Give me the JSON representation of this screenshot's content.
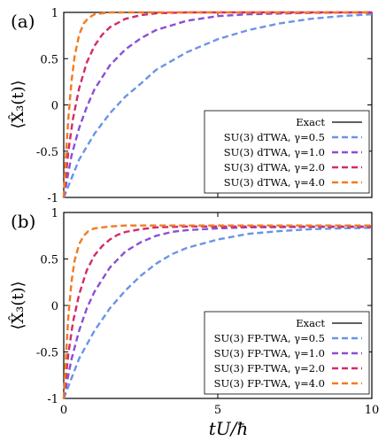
{
  "figure": {
    "xlabel": "tU/ħ",
    "ylabel": "⟨X̂₃(t)⟩"
  },
  "chart_data": [
    {
      "type": "line",
      "panel_label": "(a)",
      "xlim": [
        0,
        10
      ],
      "ylim": [
        -1,
        1
      ],
      "xticks": [
        0,
        5,
        10
      ],
      "yticks": [
        -1,
        -0.5,
        0,
        0.5,
        1
      ],
      "ytick_labels": [
        "-1",
        "-0.5",
        "0",
        "0.5",
        "1"
      ],
      "xtick_labels": [
        "",
        "",
        ""
      ],
      "grid": false,
      "legend_position": "bottom-right",
      "series": [
        {
          "name": "Exact",
          "style": "solid",
          "color": "#000000",
          "gamma": null,
          "x": [],
          "y": []
        },
        {
          "name": "SU(3) dTWA, γ=0.5",
          "style": "dashed",
          "color": "#6a94e6",
          "gamma": 0.5,
          "x": [
            0,
            0.5,
            1,
            1.5,
            2,
            2.5,
            3,
            4,
            5,
            6,
            7,
            8,
            9,
            10
          ],
          "y": [
            -1,
            -0.59,
            -0.31,
            -0.09,
            0.09,
            0.23,
            0.38,
            0.57,
            0.71,
            0.81,
            0.88,
            0.93,
            0.96,
            0.98
          ]
        },
        {
          "name": "SU(3) dTWA, γ=1.0",
          "style": "dashed",
          "color": "#8a4fd6",
          "gamma": 1.0,
          "x": [
            0,
            0.25,
            0.5,
            0.75,
            1,
            1.5,
            2,
            2.5,
            3,
            4,
            5,
            6,
            8,
            10
          ],
          "y": [
            -1,
            -0.55,
            -0.25,
            -0.02,
            0.17,
            0.43,
            0.6,
            0.72,
            0.81,
            0.91,
            0.96,
            0.98,
            0.995,
            1.0
          ]
        },
        {
          "name": "SU(3) dTWA, γ=2.0",
          "style": "dashed",
          "color": "#d42a6a",
          "gamma": 2.0,
          "x": [
            0,
            0.15,
            0.3,
            0.5,
            0.75,
            1,
            1.25,
            1.5,
            2,
            2.5,
            3,
            4,
            6,
            10
          ],
          "y": [
            -1,
            -0.5,
            -0.15,
            0.18,
            0.46,
            0.64,
            0.76,
            0.84,
            0.93,
            0.97,
            0.99,
            1.0,
            1.0,
            1.0
          ]
        },
        {
          "name": "SU(3) dTWA, γ=4.0",
          "style": "dashed",
          "color": "#f27a1f",
          "gamma": 4.0,
          "x": [
            0,
            0.08,
            0.15,
            0.25,
            0.35,
            0.5,
            0.65,
            0.8,
            1,
            1.5,
            2,
            4,
            10
          ],
          "y": [
            -1,
            -0.5,
            -0.15,
            0.25,
            0.52,
            0.76,
            0.88,
            0.94,
            0.98,
            1.0,
            1.0,
            1.0,
            1.0
          ]
        }
      ]
    },
    {
      "type": "line",
      "panel_label": "(b)",
      "xlim": [
        0,
        10
      ],
      "ylim": [
        -1,
        1
      ],
      "xticks": [
        0,
        5,
        10
      ],
      "yticks": [
        -1,
        -0.5,
        0,
        0.5,
        1
      ],
      "ytick_labels": [
        "-1",
        "-0.5",
        "0",
        "0.5",
        "1"
      ],
      "xtick_labels": [
        "0",
        "5",
        "10"
      ],
      "grid": false,
      "legend_position": "bottom-right",
      "series": [
        {
          "name": "Exact",
          "style": "solid",
          "color": "#000000",
          "gamma": null,
          "x": [],
          "y": []
        },
        {
          "name": "SU(3) FP-TWA, γ=0.5",
          "style": "dashed",
          "color": "#6a94e6",
          "gamma": 0.5,
          "x": [
            0,
            0.5,
            1,
            1.5,
            2,
            2.5,
            3,
            3.5,
            4,
            5,
            6,
            7,
            8,
            9,
            10
          ],
          "y": [
            -1,
            -0.57,
            -0.27,
            -0.03,
            0.16,
            0.32,
            0.45,
            0.55,
            0.62,
            0.71,
            0.77,
            0.8,
            0.82,
            0.83,
            0.835
          ]
        },
        {
          "name": "SU(3) FP-TWA, γ=1.0",
          "style": "dashed",
          "color": "#8a4fd6",
          "gamma": 1.0,
          "x": [
            0,
            0.25,
            0.5,
            0.75,
            1,
            1.5,
            2,
            2.5,
            3,
            3.5,
            4,
            5,
            6,
            8,
            10
          ],
          "y": [
            -1,
            -0.58,
            -0.27,
            -0.03,
            0.15,
            0.41,
            0.58,
            0.68,
            0.75,
            0.79,
            0.81,
            0.83,
            0.84,
            0.845,
            0.845
          ]
        },
        {
          "name": "SU(3) FP-TWA, γ=2.0",
          "style": "dashed",
          "color": "#d42a6a",
          "gamma": 2.0,
          "x": [
            0,
            0.15,
            0.3,
            0.5,
            0.75,
            1,
            1.25,
            1.5,
            1.75,
            2,
            2.5,
            3,
            4,
            6,
            10
          ],
          "y": [
            -1,
            -0.52,
            -0.18,
            0.12,
            0.38,
            0.54,
            0.64,
            0.71,
            0.76,
            0.79,
            0.82,
            0.84,
            0.85,
            0.85,
            0.85
          ]
        },
        {
          "name": "SU(3) FP-TWA, γ=4.0",
          "style": "dashed",
          "color": "#f27a1f",
          "gamma": 4.0,
          "x": [
            0,
            0.08,
            0.15,
            0.25,
            0.35,
            0.5,
            0.65,
            0.8,
            1,
            1.5,
            2,
            3,
            4,
            6,
            10
          ],
          "y": [
            -1,
            -0.5,
            -0.12,
            0.25,
            0.48,
            0.66,
            0.75,
            0.8,
            0.83,
            0.85,
            0.86,
            0.86,
            0.86,
            0.86,
            0.86
          ]
        }
      ]
    }
  ]
}
